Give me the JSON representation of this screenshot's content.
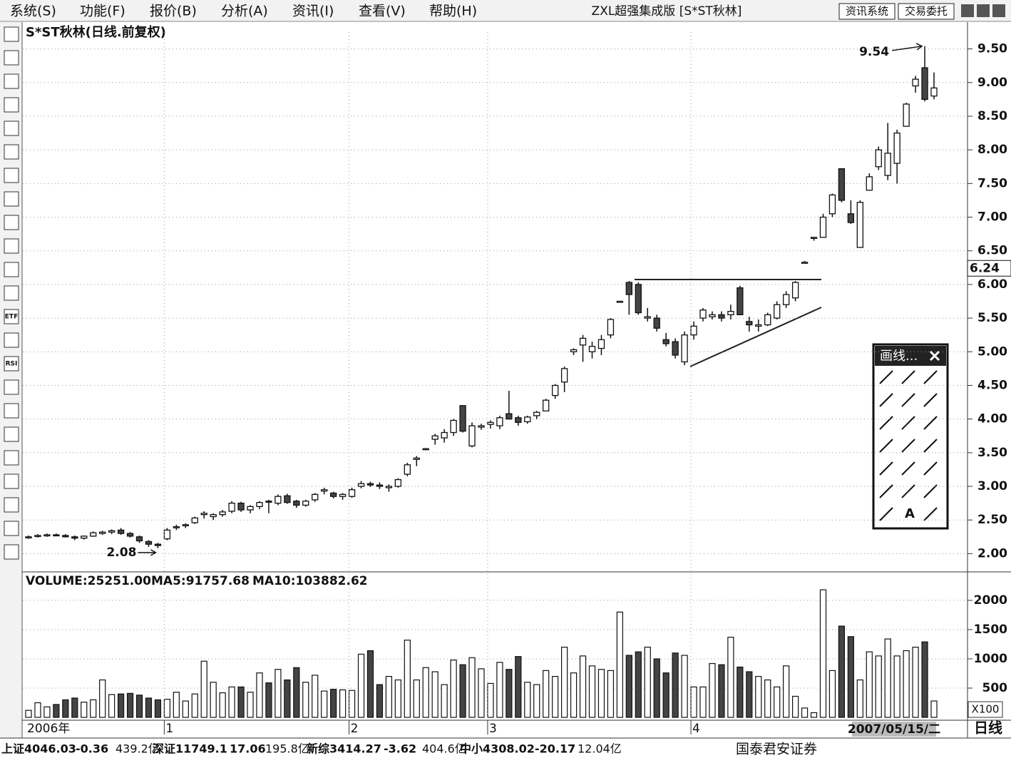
{
  "menu": [
    "系统(S)",
    "功能(F)",
    "报价(B)",
    "分析(A)",
    "资讯(I)",
    "查看(V)",
    "帮助(H)"
  ],
  "window_title": "ZXL超强集成版 [S*ST秋林]",
  "top_buttons": [
    "资讯系统",
    "交易委托"
  ],
  "toolbar_labels": [
    "ETF",
    "RSI"
  ],
  "chart_data": [
    {
      "type": "candlestick",
      "title": "S*ST秋林(日线.前复权)",
      "open": [
        2.24,
        2.26,
        2.27,
        2.28,
        2.27,
        2.25,
        2.23,
        2.26,
        2.3,
        2.32,
        2.35,
        2.3,
        2.25,
        2.18,
        2.14,
        2.22,
        2.4,
        2.42,
        2.46,
        2.58,
        2.55,
        2.58,
        2.63,
        2.75,
        2.65,
        2.7,
        2.78,
        2.75,
        2.86,
        2.78,
        2.72,
        2.8,
        2.93,
        2.9,
        2.85,
        2.85,
        3.0,
        3.04,
        3.02,
        2.98,
        3.0,
        3.18,
        3.4,
        3.55,
        3.7,
        3.72,
        3.8,
        4.2,
        3.6,
        3.88,
        3.92,
        3.9,
        4.08,
        4.02,
        3.96,
        4.05,
        4.12,
        4.35,
        4.55,
        5.0,
        5.1,
        5.0,
        5.05,
        5.25,
        5.75,
        6.03,
        6.0,
        5.5,
        5.5,
        5.18,
        5.15,
        4.85,
        5.25,
        5.5,
        5.52,
        5.55,
        5.55,
        5.95,
        5.45,
        5.38,
        5.4,
        5.5,
        5.7,
        5.8,
        6.33,
        6.7,
        6.7,
        7.05,
        7.72,
        7.05,
        6.55,
        7.4,
        7.75,
        7.62,
        7.8,
        8.35,
        8.95,
        9.22,
        8.8
      ],
      "high": [
        2.27,
        2.29,
        2.3,
        2.3,
        2.29,
        2.27,
        2.27,
        2.33,
        2.34,
        2.36,
        2.38,
        2.32,
        2.27,
        2.2,
        2.16,
        2.38,
        2.43,
        2.45,
        2.55,
        2.63,
        2.6,
        2.65,
        2.78,
        2.77,
        2.72,
        2.78,
        2.8,
        2.88,
        2.89,
        2.8,
        2.8,
        2.9,
        2.98,
        2.92,
        2.9,
        2.98,
        3.08,
        3.07,
        3.06,
        3.03,
        3.12,
        3.35,
        3.45,
        3.57,
        3.78,
        3.85,
        4.0,
        4.2,
        3.95,
        3.93,
        3.98,
        4.05,
        4.42,
        4.05,
        4.05,
        4.12,
        4.3,
        4.52,
        4.78,
        5.05,
        5.25,
        5.15,
        5.25,
        5.5,
        5.75,
        6.05,
        6.03,
        5.65,
        5.55,
        5.28,
        5.2,
        5.3,
        5.45,
        5.65,
        5.6,
        5.6,
        5.7,
        5.98,
        5.52,
        5.48,
        5.58,
        5.75,
        5.9,
        6.05,
        6.35,
        6.7,
        7.05,
        7.35,
        7.72,
        7.25,
        7.25,
        7.65,
        8.05,
        8.4,
        8.3,
        8.7,
        9.1,
        9.54,
        9.15
      ],
      "low": [
        2.22,
        2.24,
        2.25,
        2.26,
        2.24,
        2.2,
        2.21,
        2.25,
        2.28,
        2.29,
        2.28,
        2.24,
        2.16,
        2.1,
        2.08,
        2.2,
        2.35,
        2.38,
        2.44,
        2.52,
        2.5,
        2.55,
        2.6,
        2.62,
        2.6,
        2.66,
        2.6,
        2.72,
        2.74,
        2.68,
        2.7,
        2.77,
        2.88,
        2.82,
        2.8,
        2.83,
        2.97,
        2.99,
        2.96,
        2.92,
        2.98,
        3.15,
        3.3,
        3.55,
        3.62,
        3.65,
        3.75,
        3.8,
        3.58,
        3.84,
        3.86,
        3.85,
        4.0,
        3.9,
        3.93,
        4.0,
        4.12,
        4.3,
        4.4,
        4.95,
        4.85,
        4.9,
        4.95,
        5.2,
        5.75,
        5.55,
        5.55,
        5.45,
        5.3,
        5.08,
        4.9,
        4.8,
        5.18,
        5.45,
        5.48,
        5.45,
        5.48,
        5.55,
        5.3,
        5.3,
        5.38,
        5.48,
        5.65,
        5.75,
        6.33,
        6.65,
        6.7,
        7.0,
        7.22,
        6.9,
        6.55,
        7.4,
        7.7,
        7.55,
        7.5,
        8.35,
        8.85,
        8.72,
        8.75
      ],
      "close": [
        2.25,
        2.27,
        2.28,
        2.27,
        2.25,
        2.23,
        2.26,
        2.31,
        2.32,
        2.34,
        2.3,
        2.26,
        2.19,
        2.14,
        2.12,
        2.35,
        2.4,
        2.43,
        2.53,
        2.6,
        2.58,
        2.62,
        2.75,
        2.65,
        2.7,
        2.76,
        2.77,
        2.85,
        2.76,
        2.72,
        2.78,
        2.88,
        2.95,
        2.85,
        2.88,
        2.95,
        3.04,
        3.02,
        3.0,
        3.0,
        3.1,
        3.32,
        3.42,
        3.56,
        3.75,
        3.8,
        3.98,
        3.82,
        3.9,
        3.9,
        3.95,
        4.02,
        4.0,
        3.95,
        4.03,
        4.1,
        4.28,
        4.5,
        4.75,
        5.03,
        5.2,
        5.08,
        5.18,
        5.48,
        5.75,
        5.85,
        5.58,
        5.52,
        5.35,
        5.12,
        4.95,
        5.25,
        5.38,
        5.62,
        5.55,
        5.5,
        5.6,
        5.55,
        5.4,
        5.4,
        5.55,
        5.7,
        5.85,
        6.03,
        6.33,
        6.7,
        7.0,
        7.33,
        7.25,
        6.92,
        7.22,
        7.6,
        8.0,
        7.95,
        8.25,
        8.68,
        9.05,
        8.75,
        8.92
      ],
      "bull_color": "#ffffff",
      "bear_color": "#444444",
      "ylim": [
        1.75,
        9.75
      ],
      "yticks": [
        {
          "value": 2,
          "label": "2.00"
        },
        {
          "value": 2.5,
          "label": "2.50"
        },
        {
          "value": 3,
          "label": "3.00"
        },
        {
          "value": 3.5,
          "label": "3.50"
        },
        {
          "value": 4,
          "label": "4.00"
        },
        {
          "value": 4.5,
          "label": "4.50"
        },
        {
          "value": 5,
          "label": "5.00"
        },
        {
          "value": 5.5,
          "label": "5.50"
        },
        {
          "value": 6,
          "label": "6.00"
        },
        {
          "value": 6.5,
          "label": "6.50"
        },
        {
          "value": 7,
          "label": "7.00"
        },
        {
          "value": 7.5,
          "label": "7.50"
        },
        {
          "value": 8,
          "label": "8.00"
        },
        {
          "value": 8.5,
          "label": "8.50"
        },
        {
          "value": 9,
          "label": "9.00"
        },
        {
          "value": 9.5,
          "label": "9.50"
        }
      ],
      "annotations": [
        9.54,
        2.08
      ],
      "cursor_price": 6.24,
      "grid": true
    },
    {
      "type": "volume-bar",
      "legend": [
        "VOLUME:25251.00",
        "MA5:91757.68",
        "MA10:103882.62"
      ],
      "values": [
        120,
        250,
        180,
        220,
        300,
        330,
        260,
        300,
        640,
        390,
        400,
        410,
        380,
        330,
        300,
        310,
        430,
        280,
        400,
        960,
        600,
        420,
        520,
        520,
        430,
        760,
        590,
        820,
        640,
        850,
        600,
        720,
        450,
        480,
        470,
        460,
        1080,
        1140,
        560,
        700,
        640,
        1320,
        640,
        850,
        780,
        560,
        980,
        900,
        1020,
        830,
        580,
        940,
        820,
        1040,
        600,
        560,
        800,
        700,
        1200,
        760,
        1050,
        880,
        820,
        800,
        1800,
        1060,
        1120,
        1200,
        1000,
        760,
        1100,
        1060,
        520,
        520,
        920,
        900,
        1370,
        860,
        780,
        700,
        640,
        520,
        880,
        360,
        160,
        80,
        2180,
        800,
        1560,
        1380,
        640,
        1120,
        1050,
        1340,
        1050,
        1140,
        1200,
        1290,
        280
      ],
      "categories": [
        "2006年",
        null,
        null,
        null,
        null,
        null,
        null,
        null,
        null,
        null,
        null,
        null,
        null,
        null,
        null,
        "1",
        null,
        null,
        null,
        null,
        null,
        null,
        null,
        null,
        null,
        null,
        null,
        null,
        null,
        null,
        null,
        null,
        null,
        null,
        null,
        "2",
        null,
        null,
        null,
        null,
        null,
        null,
        null,
        null,
        null,
        null,
        null,
        null,
        null,
        null,
        "3",
        null,
        null,
        null,
        null,
        null,
        null,
        null,
        null,
        null,
        null,
        null,
        null,
        null,
        null,
        null,
        null,
        null,
        null,
        null,
        null,
        null,
        "4",
        null,
        null,
        null,
        null,
        null,
        null,
        null,
        null,
        null,
        null,
        null,
        null,
        null,
        null,
        null,
        null,
        null,
        null,
        null,
        null,
        null,
        null,
        null,
        null,
        null,
        null
      ],
      "ylim": [
        0,
        2450
      ],
      "yticks": [
        500,
        1000,
        1500,
        2000
      ],
      "unit_label": "X100",
      "cursor_date": "2007/05/15/二",
      "period_label": "日线"
    }
  ],
  "palette": {
    "title": "画线...",
    "text_tool": "A"
  },
  "status_bar": {
    "items": [
      "上证4046.03",
      "-0.36",
      "439.2亿",
      "深证11749.1",
      "17.06",
      "195.8亿",
      "新综3414.27",
      "-3.62",
      "404.6亿",
      "中小4308.02",
      "-20.17",
      "12.04亿"
    ],
    "broker": "国泰君安证券"
  }
}
